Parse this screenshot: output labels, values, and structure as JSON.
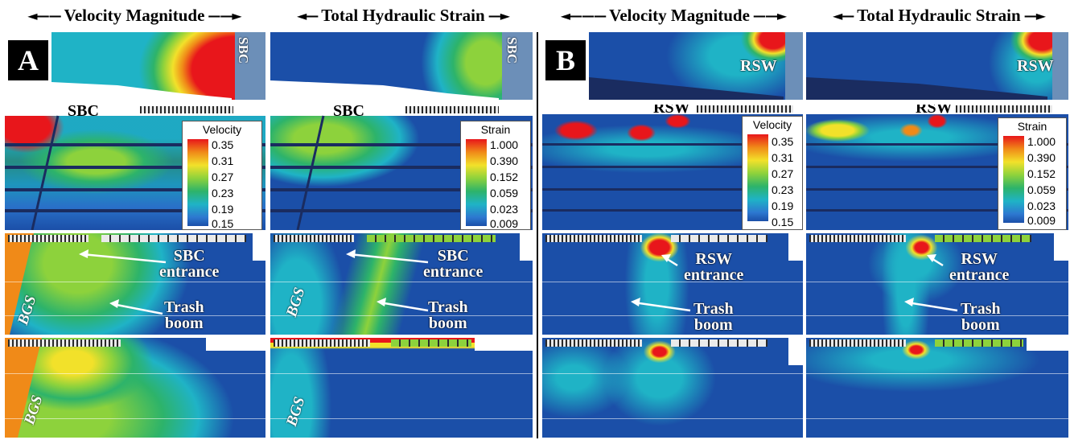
{
  "headers": {
    "velocity_magnitude": "Velocity Magnitude",
    "total_hydraulic_strain": "Total Hydraulic Strain"
  },
  "panels": {
    "a": {
      "letter": "A",
      "structure_top": "SBC",
      "structure_plan": "SBC",
      "entrance_label_1": "SBC",
      "entrance_label_2": "entrance",
      "trash_label_1": "Trash",
      "trash_label_2": "boom",
      "guidance": "BGS"
    },
    "b": {
      "letter": "B",
      "structure_top": "RSW",
      "structure_plan": "RSW",
      "entrance_label_1": "RSW",
      "entrance_label_2": "entrance",
      "trash_label_1": "Trash",
      "trash_label_2": "boom"
    }
  },
  "legends": {
    "velocity": {
      "title": "Velocity",
      "ticks": [
        "0.35",
        "0.31",
        "0.27",
        "0.23",
        "0.19",
        "0.15"
      ]
    },
    "strain": {
      "title": "Strain",
      "ticks": [
        "1.000",
        "0.390",
        "0.152",
        "0.059",
        "0.023",
        "0.009"
      ]
    }
  },
  "colors": {
    "low": "#1b4fa8",
    "mid_cyan": "#1fb3c6",
    "mid_green": "#8dd23c",
    "mid_yellow": "#f2e12a",
    "high": "#e8161b"
  }
}
